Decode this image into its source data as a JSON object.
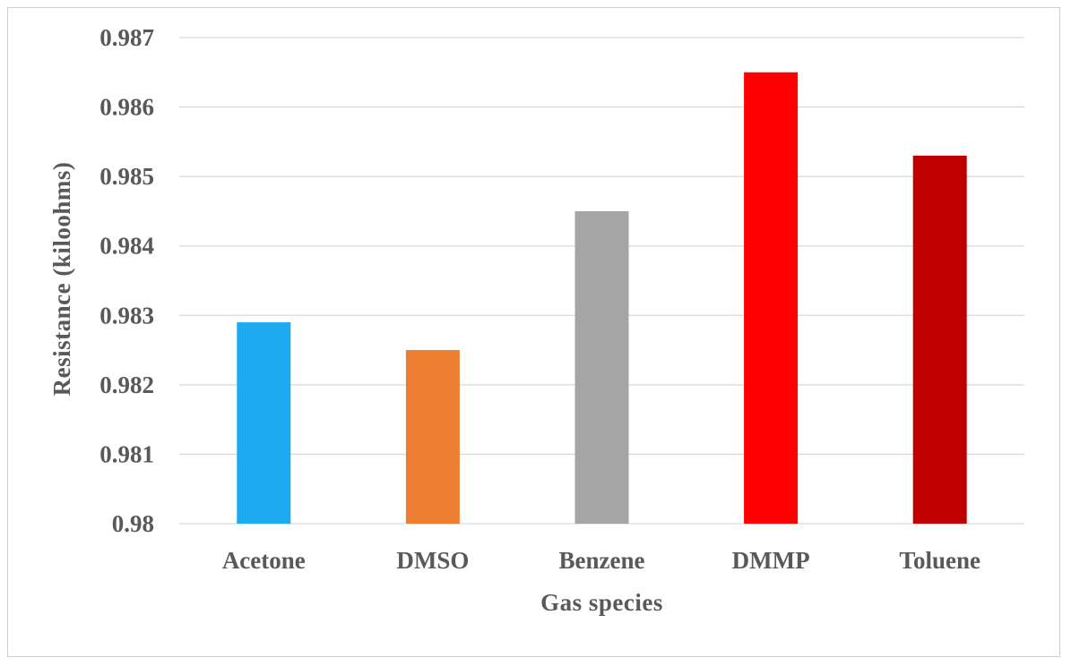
{
  "chart_data": {
    "type": "bar",
    "categories": [
      "Acetone",
      "DMSO",
      "Benzene",
      "DMMP",
      "Toluene"
    ],
    "values": [
      0.9829,
      0.9825,
      0.9845,
      0.9865,
      0.9853
    ],
    "colors": [
      "#1eaaf0",
      "#ed7d31",
      "#a5a5a5",
      "#ff0000",
      "#c00000"
    ],
    "title": "",
    "xlabel": "Gas species",
    "ylabel": "Resistance (kiloohms)",
    "ylim": [
      0.98,
      0.987
    ],
    "yticks": [
      "0.98",
      "0.981",
      "0.982",
      "0.983",
      "0.984",
      "0.985",
      "0.986",
      "0.987"
    ],
    "grid": true,
    "legend": "none"
  }
}
